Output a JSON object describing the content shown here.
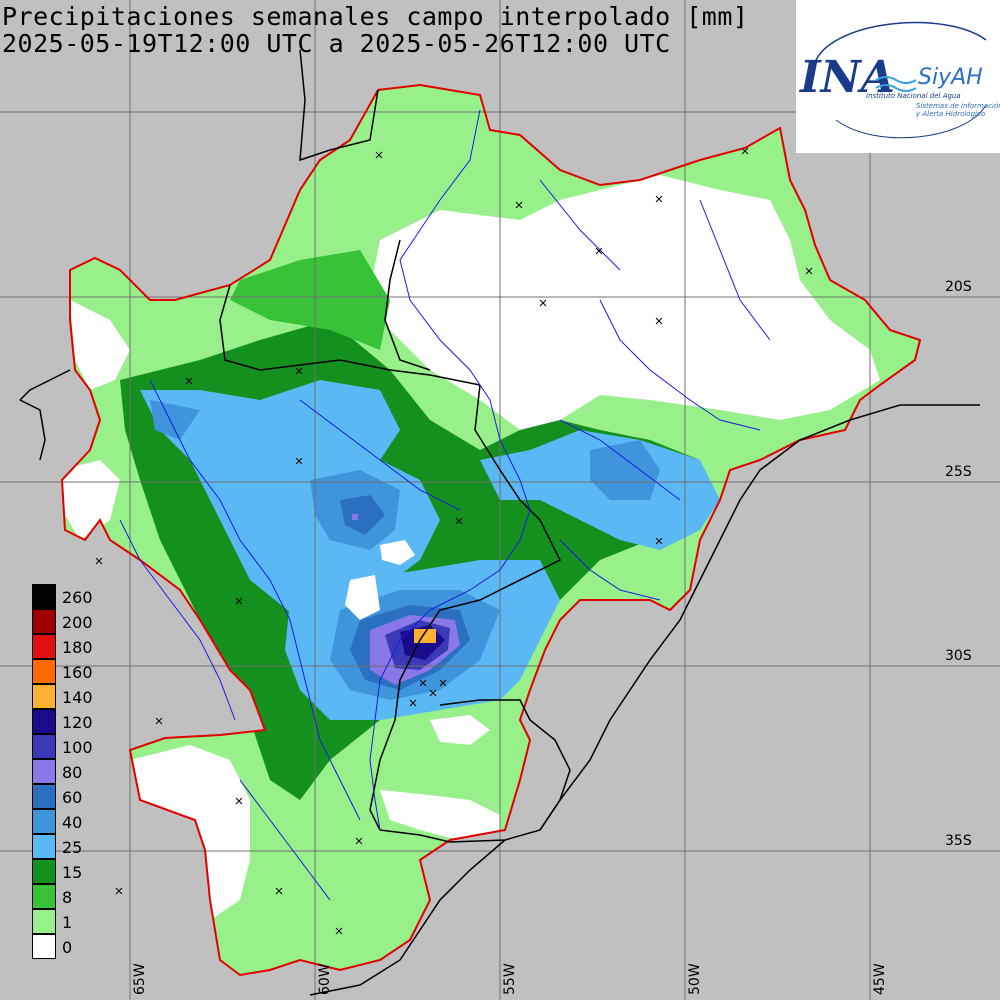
{
  "title": {
    "line1": "Precipitaciones semanales campo interpolado [mm]",
    "line2": "2025-05-19T12:00 UTC a 2025-05-26T12:00 UTC"
  },
  "logo": {
    "acronym": "INA",
    "brand": "SiyAH",
    "org": "Instituto Nacional del Agua",
    "tagline1": "Sistemas de información",
    "tagline2": "y Alerta Hidrológico"
  },
  "latitude_labels": [
    "20S",
    "25S",
    "30S",
    "35S"
  ],
  "longitude_labels": [
    "65W",
    "60W",
    "55W",
    "50W",
    "45W"
  ],
  "legend": [
    {
      "label": "260",
      "color": "#000000"
    },
    {
      "label": "200",
      "color": "#a00000"
    },
    {
      "label": "180",
      "color": "#e01010"
    },
    {
      "label": "160",
      "color": "#ff6a00"
    },
    {
      "label": "140",
      "color": "#ffb030"
    },
    {
      "label": "120",
      "color": "#1a0a8c"
    },
    {
      "label": "100",
      "color": "#3a3ab8"
    },
    {
      "label": "80",
      "color": "#8a78e8"
    },
    {
      "label": "60",
      "color": "#2a6fc0"
    },
    {
      "label": "40",
      "color": "#3e95dc"
    },
    {
      "label": "25",
      "color": "#5ab8f5"
    },
    {
      "label": "15",
      "color": "#14901e"
    },
    {
      "label": "8",
      "color": "#38c238"
    },
    {
      "label": "1",
      "color": "#98f08a"
    },
    {
      "label": "0",
      "color": "#ffffff"
    }
  ],
  "colors": {
    "background": "#c0c0c0",
    "basin_outline": "#e00000",
    "rivers": "#1a1ae0",
    "borders": "#000000",
    "grid": "#707070"
  }
}
